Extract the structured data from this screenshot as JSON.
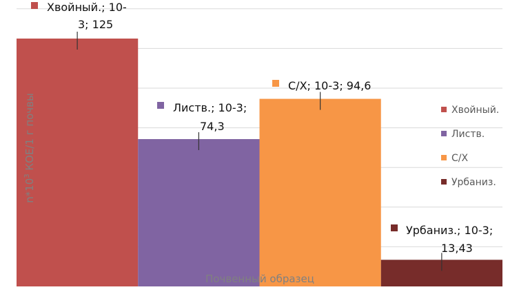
{
  "chart_data": {
    "type": "bar",
    "categories": [
      "Хвойный.",
      "Листв.",
      "С/Х",
      "Урбаниз."
    ],
    "values": [
      125,
      74.3,
      94.6,
      13.43
    ],
    "series_label_tag": "10-3",
    "data_labels": [
      [
        "Хвойный.; 10-",
        "3; 125"
      ],
      [
        "Листв.; 10-3;",
        "74,3"
      ],
      [
        "С/Х; 10-3; 94,6"
      ],
      [
        "Урбаниз.; 10-3;",
        "13,43"
      ]
    ],
    "colors": [
      "#c0504d",
      "#8064a2",
      "#f79646",
      "#772c2a"
    ],
    "xlabel": "Почвенный образец",
    "ylabel": "n*10³ КОЕ/1 г почвы",
    "ylim": [
      0,
      140
    ],
    "grid": true,
    "error_bars": true,
    "legend_position": "right"
  }
}
